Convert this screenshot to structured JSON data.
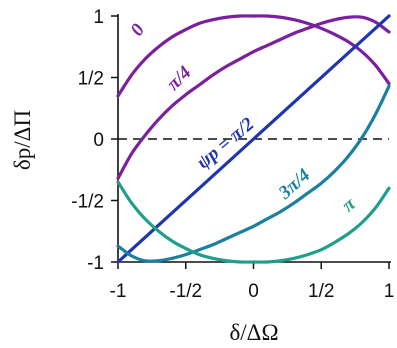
{
  "chart_data": {
    "type": "line",
    "title": "",
    "xlabel": "δ/ΔΩ",
    "ylabel": "δp/ΔΠ",
    "xlim": [
      -1,
      1
    ],
    "ylim": [
      -1,
      1
    ],
    "x_ticks": [
      "-1",
      "-1/2",
      "0",
      "1/2",
      "1"
    ],
    "y_ticks": [
      "-1",
      "-1/2",
      "0",
      "1/2",
      "1"
    ],
    "grid": false,
    "reference_line": {
      "y": 0,
      "style": "dashed"
    },
    "series": [
      {
        "name": "0",
        "color": "#7a1fa0",
        "x": [
          -1,
          -0.9,
          -0.8,
          -0.7,
          -0.6,
          -0.5,
          -0.4,
          -0.3,
          -0.2,
          -0.1,
          0,
          0.1,
          0.2,
          0.3,
          0.4,
          0.5,
          0.6,
          0.7,
          0.8,
          0.9,
          1
        ],
        "y": [
          0.35,
          0.52,
          0.65,
          0.75,
          0.83,
          0.89,
          0.94,
          0.97,
          0.99,
          1.0,
          1.0,
          1.0,
          0.99,
          0.97,
          0.94,
          0.9,
          0.85,
          0.79,
          0.71,
          0.6,
          0.45
        ]
      },
      {
        "name": "π/4",
        "color": "#7a1fa0",
        "x": [
          -1,
          -0.9,
          -0.8,
          -0.7,
          -0.6,
          -0.5,
          -0.4,
          -0.3,
          -0.2,
          -0.1,
          0,
          0.1,
          0.2,
          0.3,
          0.4,
          0.5,
          0.6,
          0.7,
          0.8,
          0.9,
          1
        ],
        "y": [
          -0.32,
          -0.12,
          0.03,
          0.16,
          0.27,
          0.36,
          0.44,
          0.52,
          0.59,
          0.65,
          0.71,
          0.76,
          0.81,
          0.86,
          0.9,
          0.94,
          0.97,
          0.99,
          0.99,
          0.95,
          0.87
        ]
      },
      {
        "name": "ψp = π/2",
        "color": "#1f35b0",
        "x": [
          -1,
          1
        ],
        "y": [
          -1,
          1
        ]
      },
      {
        "name": "3π/4",
        "color": "#1a7fa0",
        "x": [
          -1,
          -0.9,
          -0.8,
          -0.7,
          -0.6,
          -0.5,
          -0.4,
          -0.3,
          -0.2,
          -0.1,
          0,
          0.1,
          0.2,
          0.3,
          0.4,
          0.5,
          0.6,
          0.7,
          0.8,
          0.9,
          1
        ],
        "y": [
          -0.87,
          -0.95,
          -0.99,
          -0.99,
          -0.97,
          -0.94,
          -0.9,
          -0.86,
          -0.81,
          -0.76,
          -0.71,
          -0.65,
          -0.59,
          -0.52,
          -0.44,
          -0.36,
          -0.26,
          -0.14,
          0.01,
          0.2,
          0.43
        ]
      },
      {
        "name": "π",
        "color": "#1f9e8a",
        "x": [
          -1,
          -0.9,
          -0.8,
          -0.7,
          -0.6,
          -0.5,
          -0.4,
          -0.3,
          -0.2,
          -0.1,
          0,
          0.1,
          0.2,
          0.3,
          0.4,
          0.5,
          0.6,
          0.7,
          0.8,
          0.9,
          1
        ],
        "y": [
          -0.35,
          -0.52,
          -0.65,
          -0.75,
          -0.83,
          -0.89,
          -0.94,
          -0.97,
          -0.99,
          -1.0,
          -1.0,
          -1.0,
          -0.99,
          -0.97,
          -0.94,
          -0.9,
          -0.84,
          -0.77,
          -0.68,
          -0.56,
          -0.4
        ]
      }
    ],
    "curve_labels": [
      {
        "text": "0",
        "x": -0.82,
        "y": 0.86,
        "color": "#7a1fa0",
        "angle": -55
      },
      {
        "text": "π/4",
        "x": -0.52,
        "y": 0.46,
        "color": "#7a1fa0",
        "angle": -45
      },
      {
        "text": "ψp = π/2",
        "x": -0.18,
        "y": -0.07,
        "color": "#1f35b0",
        "angle": -40
      },
      {
        "text": "3π/4",
        "x": 0.33,
        "y": -0.4,
        "color": "#1a7fa0",
        "angle": -42
      },
      {
        "text": "π",
        "x": 0.73,
        "y": -0.57,
        "color": "#1f9e8a",
        "angle": -40
      }
    ]
  }
}
